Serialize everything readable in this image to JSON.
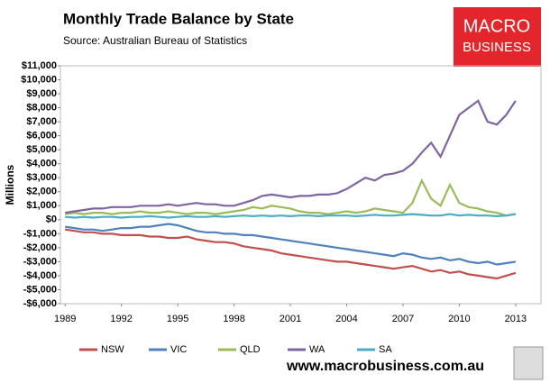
{
  "chart_data": {
    "type": "line",
    "title": "Monthly Trade Balance by State",
    "subtitle": "Source: Australian Bureau of Statistics",
    "y_label": "Millions",
    "logo_text": [
      "MACRO",
      "BUSINESS"
    ],
    "footer": "www.macrobusiness.com.au",
    "x": [
      1989,
      1989.5,
      1990,
      1990.5,
      1991,
      1991.5,
      1992,
      1992.5,
      1993,
      1993.5,
      1994,
      1994.5,
      1995,
      1995.5,
      1996,
      1996.5,
      1997,
      1997.5,
      1998,
      1998.5,
      1999,
      1999.5,
      2000,
      2000.5,
      2001,
      2001.5,
      2002,
      2002.5,
      2003,
      2003.5,
      2004,
      2004.5,
      2005,
      2005.5,
      2006,
      2006.5,
      2007,
      2007.5,
      2008,
      2008.5,
      2009,
      2009.5,
      2010,
      2010.5,
      2011,
      2011.5,
      2012,
      2012.5,
      2013
    ],
    "xlim": [
      1988.75,
      2014.35
    ],
    "xticks": [
      1989,
      1992,
      1995,
      1998,
      2001,
      2004,
      2007,
      2010,
      2013
    ],
    "ylim": [
      -6000,
      11000
    ],
    "yticks": [
      {
        "value": -6000,
        "label": "-$6,000"
      },
      {
        "value": -5000,
        "label": "-$5,000"
      },
      {
        "value": -4000,
        "label": "-$4,000"
      },
      {
        "value": -3000,
        "label": "-$3,000"
      },
      {
        "value": -2000,
        "label": "-$2,000"
      },
      {
        "value": -1000,
        "label": "-$1,000"
      },
      {
        "value": 0,
        "label": "$0"
      },
      {
        "value": 1000,
        "label": "$1,000"
      },
      {
        "value": 2000,
        "label": "$2,000"
      },
      {
        "value": 3000,
        "label": "$3,000"
      },
      {
        "value": 4000,
        "label": "$4,000"
      },
      {
        "value": 5000,
        "label": "$5,000"
      },
      {
        "value": 6000,
        "label": "$6,000"
      },
      {
        "value": 7000,
        "label": "$7,000"
      },
      {
        "value": 8000,
        "label": "$8,000"
      },
      {
        "value": 9000,
        "label": "$9,000"
      },
      {
        "value": 10000,
        "label": "$10,000"
      },
      {
        "value": 11000,
        "label": "$11,000"
      }
    ],
    "grid": false,
    "legend": "bottom",
    "series": [
      {
        "name": "NSW",
        "color": "#c0504d",
        "values": [
          -700,
          -800,
          -900,
          -900,
          -1000,
          -1000,
          -1100,
          -1100,
          -1100,
          -1200,
          -1200,
          -1300,
          -1300,
          -1200,
          -1400,
          -1500,
          -1600,
          -1600,
          -1700,
          -1900,
          -2000,
          -2100,
          -2200,
          -2400,
          -2500,
          -2600,
          -2700,
          -2800,
          -2900,
          -3000,
          -3000,
          -3100,
          -3200,
          -3300,
          -3400,
          -3500,
          -3400,
          -3300,
          -3500,
          -3700,
          -3600,
          -3800,
          -3700,
          -3900,
          -4000,
          -4100,
          -4200,
          -4000,
          -3800
        ]
      },
      {
        "name": "VIC",
        "color": "#4f81bd",
        "values": [
          -500,
          -600,
          -700,
          -700,
          -800,
          -700,
          -600,
          -600,
          -500,
          -500,
          -400,
          -300,
          -400,
          -600,
          -800,
          -900,
          -900,
          -1000,
          -1000,
          -1100,
          -1100,
          -1200,
          -1300,
          -1400,
          -1500,
          -1600,
          -1700,
          -1800,
          -1900,
          -2000,
          -2100,
          -2200,
          -2300,
          -2400,
          -2500,
          -2600,
          -2400,
          -2500,
          -2700,
          -2800,
          -2700,
          -2900,
          -2800,
          -3000,
          -3100,
          -3000,
          -3200,
          -3100,
          -3000
        ]
      },
      {
        "name": "QLD",
        "color": "#9bbb59",
        "values": [
          400,
          500,
          400,
          500,
          500,
          400,
          500,
          500,
          600,
          500,
          500,
          600,
          500,
          400,
          500,
          500,
          400,
          500,
          600,
          700,
          900,
          800,
          1000,
          900,
          800,
          600,
          500,
          500,
          400,
          500,
          600,
          500,
          600,
          800,
          700,
          600,
          500,
          1200,
          2800,
          1500,
          1000,
          2500,
          1200,
          900,
          800,
          600,
          500,
          300,
          400
        ]
      },
      {
        "name": "WA",
        "color": "#8064a2",
        "values": [
          500,
          600,
          700,
          800,
          800,
          900,
          900,
          900,
          1000,
          1000,
          1000,
          1100,
          1000,
          1100,
          1200,
          1100,
          1100,
          1000,
          1000,
          1200,
          1400,
          1700,
          1800,
          1700,
          1600,
          1700,
          1700,
          1800,
          1800,
          1900,
          2200,
          2600,
          3000,
          2800,
          3200,
          3300,
          3500,
          4000,
          4800,
          5500,
          4500,
          6000,
          7500,
          8000,
          8500,
          7000,
          6800,
          7500,
          8500
        ]
      },
      {
        "name": "SA",
        "color": "#4bacc6",
        "values": [
          200,
          150,
          200,
          150,
          200,
          200,
          150,
          200,
          200,
          250,
          200,
          150,
          200,
          250,
          200,
          200,
          250,
          200,
          250,
          300,
          250,
          300,
          250,
          300,
          250,
          300,
          300,
          250,
          300,
          300,
          300,
          250,
          300,
          350,
          300,
          300,
          350,
          400,
          350,
          300,
          300,
          400,
          300,
          350,
          300,
          300,
          250,
          300,
          400
        ]
      }
    ]
  }
}
